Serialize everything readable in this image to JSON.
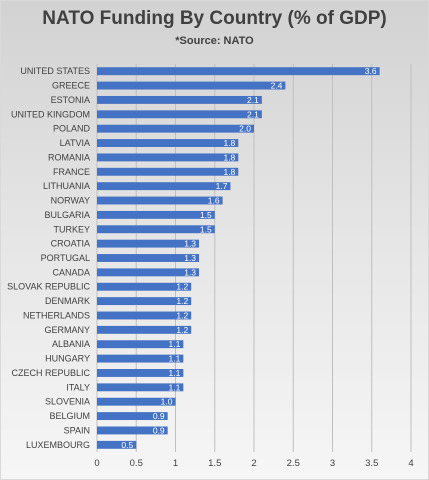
{
  "chart_data": {
    "type": "bar",
    "orientation": "horizontal",
    "title": "NATO Funding By Country (% of GDP)",
    "subtitle": "*Source: NATO",
    "categories": [
      "UNITED STATES",
      "GREECE",
      "ESTONIA",
      "UNITED KINGDOM",
      "POLAND",
      "LATVIA",
      "ROMANIA",
      "FRANCE",
      "LITHUANIA",
      "NORWAY",
      "BULGARIA",
      "TURKEY",
      "CROATIA",
      "PORTUGAL",
      "CANADA",
      "SLOVAK REPUBLIC",
      "DENMARK",
      "NETHERLANDS",
      "GERMANY",
      "ALBANIA",
      "HUNGARY",
      "CZECH REPUBLIC",
      "ITALY",
      "SLOVENIA",
      "BELGIUM",
      "SPAIN",
      "LUXEMBOURG"
    ],
    "values": [
      3.6,
      2.4,
      2.1,
      2.1,
      2.0,
      1.8,
      1.8,
      1.8,
      1.7,
      1.6,
      1.5,
      1.5,
      1.3,
      1.3,
      1.3,
      1.2,
      1.2,
      1.2,
      1.2,
      1.1,
      1.1,
      1.1,
      1.1,
      1.0,
      0.9,
      0.9,
      0.5
    ],
    "value_labels": [
      "3.6",
      "2.4",
      "2.1",
      "2.1",
      "2.0",
      "1.8",
      "1.8",
      "1.8",
      "1.7",
      "1.6",
      "1.5",
      "1.5",
      "1.3",
      "1.3",
      "1.3",
      "1.2",
      "1.2",
      "1.2",
      "1.2",
      "1.1",
      "1.1",
      "1.1",
      "1.1",
      "1.0",
      "0.9",
      "0.9",
      "0.5"
    ],
    "xticks": [
      0,
      0.5,
      1,
      1.5,
      2,
      2.5,
      3,
      3.5,
      4
    ],
    "xtick_labels": [
      "0",
      "0.5",
      "1",
      "1.5",
      "2",
      "2.5",
      "3",
      "3.5",
      "4"
    ],
    "xlim": [
      0,
      4
    ],
    "grid": true,
    "bar_color": "#4472c4",
    "grid_color": "#bfbfbf"
  }
}
